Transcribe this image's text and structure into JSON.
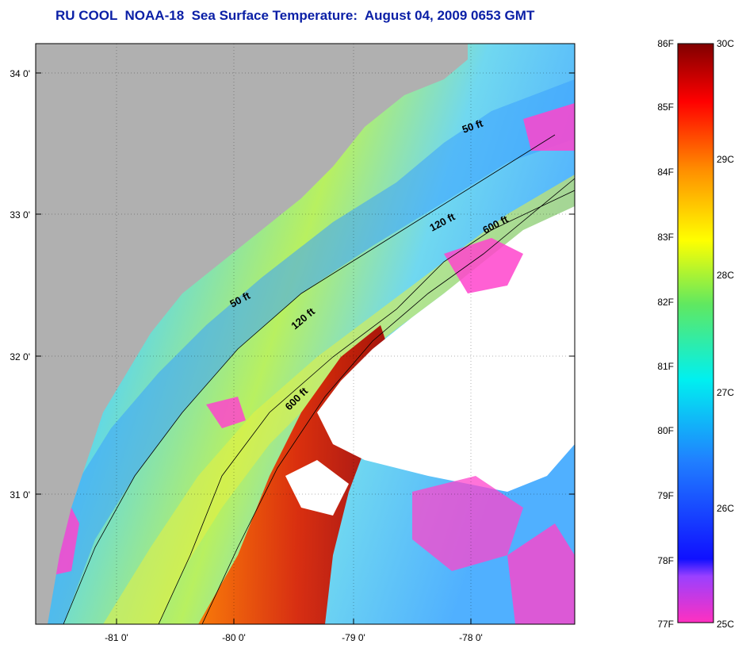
{
  "title": "RU COOL  NOAA-18  Sea Surface Temperature:  August 04, 2009 0653 GMT",
  "latitude_ticks": [
    "34 0'",
    "33 0'",
    "32 0'",
    "31 0'"
  ],
  "longitude_ticks": [
    "-81 0'",
    "-80 0'",
    "-79 0'",
    "-78 0'"
  ],
  "isobath_labels": [
    "50 ft",
    "120 ft",
    "600 ft",
    "50 ft",
    "120 ft",
    "600 ft"
  ],
  "colorbar": {
    "fahrenheit": [
      "86F",
      "85F",
      "84F",
      "83F",
      "82F",
      "81F",
      "80F",
      "79F",
      "78F",
      "77F"
    ],
    "celsius": [
      "30C",
      "29C",
      "28C",
      "27C",
      "26C",
      "25C"
    ]
  },
  "colors": {
    "land": "#b0b0b0",
    "cloud": "#ffffff",
    "title": "#0a1fa6",
    "cold": "#ff44cc",
    "warm": "#8b0000"
  }
}
